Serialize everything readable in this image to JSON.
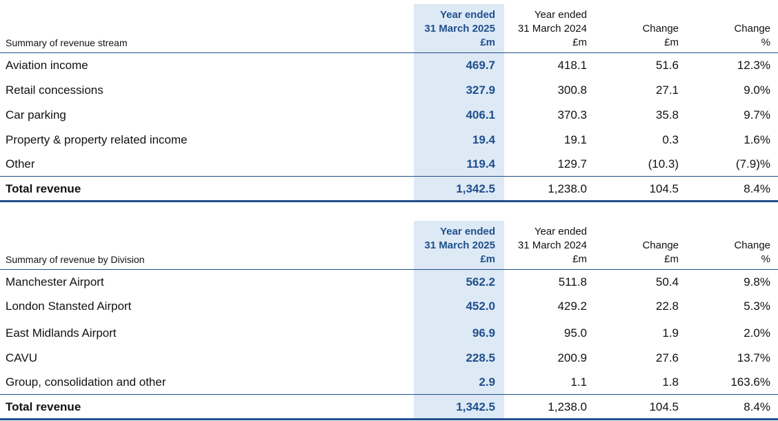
{
  "tables": [
    {
      "header": {
        "label": "Summary of revenue stream",
        "col1": [
          "Year ended",
          "31 March 2025",
          "£m"
        ],
        "col2": [
          "Year ended",
          "31 March 2024",
          "£m"
        ],
        "col3": [
          "Change",
          "£m"
        ],
        "col4": [
          "Change",
          "%"
        ]
      },
      "rows": [
        {
          "label": "Aviation income",
          "v2025": "469.7",
          "v2024": "418.1",
          "change": "51.6",
          "pct": "12.3%"
        },
        {
          "label": "Retail concessions",
          "v2025": "327.9",
          "v2024": "300.8",
          "change": "27.1",
          "pct": "9.0%"
        },
        {
          "label": "Car parking",
          "v2025": "406.1",
          "v2024": "370.3",
          "change": "35.8",
          "pct": "9.7%"
        },
        {
          "label": "Property & property related income",
          "v2025": "19.4",
          "v2024": "19.1",
          "change": "0.3",
          "pct": "1.6%"
        },
        {
          "label": "Other",
          "v2025": "119.4",
          "v2024": "129.7",
          "change": "(10.3)",
          "pct": "(7.9)%"
        }
      ],
      "total": {
        "label": "Total revenue",
        "v2025": "1,342.5",
        "v2024": "1,238.0",
        "change": "104.5",
        "pct": "8.4%"
      }
    },
    {
      "header": {
        "label": "Summary of revenue by Division",
        "col1": [
          "Year ended",
          "31 March 2025",
          "£m"
        ],
        "col2": [
          "Year ended",
          "31 March 2024",
          "£m"
        ],
        "col3": [
          "Change",
          "£m"
        ],
        "col4": [
          "Change",
          "%"
        ]
      },
      "rows": [
        {
          "label": "Manchester Airport",
          "v2025": "562.2",
          "v2024": "511.8",
          "change": "50.4",
          "pct": "9.8%"
        },
        {
          "label": "London Stansted Airport",
          "v2025": "452.0",
          "v2024": "429.2",
          "change": "22.8",
          "pct": "5.3%"
        },
        {
          "label": "East Midlands Airport",
          "v2025": "96.9",
          "v2024": "95.0",
          "change": "1.9",
          "pct": "2.0%"
        },
        {
          "label": "CAVU",
          "v2025": "228.5",
          "v2024": "200.9",
          "change": "27.6",
          "pct": "13.7%"
        },
        {
          "label": "Group, consolidation and other",
          "v2025": "2.9",
          "v2024": "1.1",
          "change": "1.8",
          "pct": "163.6%"
        }
      ],
      "total": {
        "label": "Total revenue",
        "v2025": "1,342.5",
        "v2024": "1,238.0",
        "change": "104.5",
        "pct": "8.4%"
      }
    }
  ],
  "colors": {
    "accent": "#1f4e8c",
    "highlight": "#dde9f5"
  }
}
